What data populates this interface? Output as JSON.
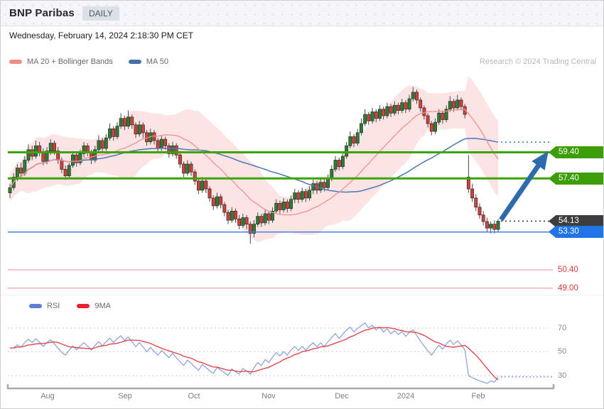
{
  "header": {
    "title": "BNP Paribas",
    "badge": "DAILY"
  },
  "date_line": "Wednesday, February 14, 2024 2:18:30 PM CET",
  "research_credit": "Research © 2024 Trading Central",
  "legend_main": [
    {
      "label": "MA 20 + Bollinger Bands",
      "color": "#f28b8b"
    },
    {
      "label": "MA 50",
      "color": "#4472a8"
    }
  ],
  "legend_rsi": [
    {
      "label": "RSI",
      "color": "#5b7fd6"
    },
    {
      "label": "9MA",
      "color": "#e8232e"
    }
  ],
  "price_tags": {
    "r1": {
      "label": "59.40",
      "bg": "#3c9e06"
    },
    "r2": {
      "label": "57.40",
      "bg": "#3c9e06"
    },
    "last": {
      "label": "54.13",
      "bg": "#3d3d3f"
    },
    "s1": {
      "label": "53.30",
      "bg": "#2173e8"
    },
    "s2": {
      "label": "50.40"
    },
    "s3": {
      "label": "49.00"
    }
  },
  "chart_data": {
    "type": "candlestick",
    "title": "BNP Paribas — daily candlesticks with MA20 Bollinger Bands, MA50, RSI(14) and 9MA of RSI",
    "x_axis": {
      "labels": [
        "Aug",
        "Sep",
        "Oct",
        "Nov",
        "Dec",
        "2024",
        "Feb"
      ]
    },
    "ylim_price_panel": [
      48.5,
      65.5
    ],
    "levels": {
      "resistance": [
        59.4,
        57.4
      ],
      "support_blue": 53.3,
      "last_price": 54.13,
      "support_red": [
        50.4,
        49.0
      ]
    },
    "annotation_arrow": {
      "direction": "up",
      "from_price": 54.13,
      "to_price": 59.4,
      "color": "#2e6bad"
    },
    "rsi_gridlines": [
      "70",
      "50",
      "30"
    ],
    "rsi_ylim": [
      15,
      85
    ],
    "indicators": [
      "MA 20 + Bollinger Bands",
      "MA 50",
      "RSI",
      "9MA"
    ],
    "candles_ohlc": [
      [
        56.3,
        57.0,
        55.9,
        56.7
      ],
      [
        56.7,
        57.8,
        56.5,
        57.5
      ],
      [
        57.5,
        58.5,
        57.2,
        58.2
      ],
      [
        58.2,
        58.6,
        57.5,
        57.8
      ],
      [
        57.8,
        59.1,
        57.6,
        58.8
      ],
      [
        58.8,
        60.0,
        58.6,
        59.6
      ],
      [
        59.6,
        59.9,
        58.8,
        59.1
      ],
      [
        59.1,
        60.3,
        58.9,
        59.9
      ],
      [
        59.9,
        60.2,
        59.1,
        59.4
      ],
      [
        59.4,
        59.7,
        58.4,
        58.7
      ],
      [
        58.7,
        59.8,
        58.5,
        59.5
      ],
      [
        59.5,
        60.4,
        59.2,
        60.1
      ],
      [
        60.1,
        60.3,
        59.2,
        59.5
      ],
      [
        59.5,
        59.8,
        58.5,
        58.8
      ],
      [
        58.8,
        59.0,
        57.8,
        58.1
      ],
      [
        58.1,
        58.4,
        57.3,
        57.6
      ],
      [
        57.6,
        58.6,
        57.4,
        58.4
      ],
      [
        58.4,
        59.5,
        58.2,
        59.2
      ],
      [
        59.2,
        59.4,
        58.3,
        58.6
      ],
      [
        58.6,
        59.6,
        58.4,
        59.3
      ],
      [
        59.3,
        60.2,
        59.0,
        59.9
      ],
      [
        59.9,
        60.1,
        59.1,
        59.4
      ],
      [
        59.4,
        59.6,
        58.5,
        58.8
      ],
      [
        58.8,
        59.9,
        58.6,
        59.6
      ],
      [
        59.6,
        60.7,
        59.4,
        60.3
      ],
      [
        60.3,
        60.5,
        59.4,
        59.7
      ],
      [
        59.7,
        60.8,
        59.5,
        60.5
      ],
      [
        60.5,
        61.6,
        60.3,
        61.2
      ],
      [
        61.2,
        61.4,
        60.3,
        60.6
      ],
      [
        60.6,
        61.7,
        60.4,
        61.4
      ],
      [
        61.4,
        62.4,
        61.2,
        62.0
      ],
      [
        62.0,
        62.2,
        61.1,
        61.4
      ],
      [
        61.4,
        62.6,
        61.2,
        62.1
      ],
      [
        62.1,
        62.3,
        61.2,
        61.5
      ],
      [
        61.5,
        61.7,
        60.5,
        60.8
      ],
      [
        60.8,
        61.8,
        60.6,
        61.5
      ],
      [
        61.5,
        61.7,
        60.5,
        60.9
      ],
      [
        60.9,
        61.1,
        59.9,
        60.2
      ],
      [
        60.2,
        61.2,
        60.0,
        60.9
      ],
      [
        60.9,
        61.1,
        60.0,
        60.3
      ],
      [
        60.3,
        60.5,
        59.4,
        59.7
      ],
      [
        59.7,
        60.7,
        59.5,
        60.4
      ],
      [
        60.4,
        60.6,
        59.6,
        59.9
      ],
      [
        59.9,
        60.1,
        59.0,
        59.3
      ],
      [
        59.3,
        60.2,
        59.1,
        59.9
      ],
      [
        59.9,
        60.1,
        58.9,
        59.2
      ],
      [
        59.2,
        59.4,
        58.2,
        58.5
      ],
      [
        58.5,
        58.7,
        57.5,
        57.8
      ],
      [
        57.8,
        58.8,
        57.6,
        58.5
      ],
      [
        58.5,
        58.7,
        57.6,
        57.9
      ],
      [
        57.9,
        58.1,
        56.9,
        57.2
      ],
      [
        57.2,
        57.4,
        56.2,
        56.5
      ],
      [
        56.5,
        57.5,
        56.3,
        57.2
      ],
      [
        57.2,
        57.4,
        56.3,
        56.6
      ],
      [
        56.6,
        56.8,
        55.6,
        55.9
      ],
      [
        55.9,
        56.1,
        55.0,
        55.3
      ],
      [
        55.3,
        56.3,
        55.1,
        56.0
      ],
      [
        56.0,
        56.2,
        55.1,
        55.4
      ],
      [
        55.4,
        55.6,
        54.5,
        54.8
      ],
      [
        54.8,
        55.0,
        53.9,
        54.2
      ],
      [
        54.2,
        55.2,
        54.0,
        54.9
      ],
      [
        54.9,
        55.1,
        54.0,
        54.3
      ],
      [
        54.3,
        54.6,
        53.5,
        53.8
      ],
      [
        53.8,
        54.7,
        53.6,
        54.4
      ],
      [
        54.4,
        54.6,
        53.5,
        53.9
      ],
      [
        53.9,
        54.1,
        52.4,
        53.2
      ],
      [
        53.2,
        54.2,
        52.9,
        53.9
      ],
      [
        53.9,
        54.8,
        53.7,
        54.5
      ],
      [
        54.5,
        54.7,
        53.7,
        54.0
      ],
      [
        54.0,
        55.0,
        53.8,
        54.7
      ],
      [
        54.7,
        54.9,
        53.9,
        54.2
      ],
      [
        54.2,
        55.2,
        54.0,
        54.9
      ],
      [
        54.9,
        55.8,
        54.7,
        55.5
      ],
      [
        55.5,
        55.7,
        54.7,
        55.0
      ],
      [
        55.0,
        55.9,
        54.8,
        55.6
      ],
      [
        55.6,
        55.8,
        54.8,
        55.1
      ],
      [
        55.1,
        56.1,
        54.9,
        55.8
      ],
      [
        55.8,
        56.6,
        55.5,
        56.3
      ],
      [
        56.3,
        56.5,
        55.5,
        55.8
      ],
      [
        55.8,
        56.7,
        55.6,
        56.4
      ],
      [
        56.4,
        56.6,
        55.6,
        55.9
      ],
      [
        55.9,
        56.8,
        55.7,
        56.5
      ],
      [
        56.5,
        57.3,
        56.2,
        57.0
      ],
      [
        57.0,
        57.2,
        56.2,
        56.5
      ],
      [
        56.5,
        57.4,
        56.3,
        57.1
      ],
      [
        57.1,
        57.3,
        56.4,
        56.7
      ],
      [
        56.7,
        57.7,
        56.5,
        57.4
      ],
      [
        57.4,
        58.4,
        57.2,
        58.1
      ],
      [
        58.1,
        59.1,
        57.9,
        58.8
      ],
      [
        58.8,
        59.0,
        58.0,
        58.3
      ],
      [
        58.3,
        59.4,
        58.1,
        59.1
      ],
      [
        59.1,
        60.2,
        58.9,
        59.9
      ],
      [
        59.9,
        61.0,
        59.7,
        60.6
      ],
      [
        60.6,
        60.8,
        59.8,
        60.1
      ],
      [
        60.1,
        61.2,
        59.9,
        60.9
      ],
      [
        60.9,
        62.0,
        60.7,
        61.6
      ],
      [
        61.6,
        62.7,
        61.4,
        62.3
      ],
      [
        62.3,
        62.5,
        61.5,
        61.8
      ],
      [
        61.8,
        62.8,
        61.6,
        62.5
      ],
      [
        62.5,
        62.7,
        61.7,
        62.0
      ],
      [
        62.0,
        63.0,
        61.8,
        62.7
      ],
      [
        62.7,
        62.9,
        61.9,
        62.2
      ],
      [
        62.2,
        63.2,
        62.0,
        62.9
      ],
      [
        62.9,
        63.1,
        62.1,
        62.4
      ],
      [
        62.4,
        63.3,
        62.2,
        63.0
      ],
      [
        63.0,
        63.2,
        62.3,
        62.6
      ],
      [
        62.6,
        63.5,
        62.4,
        63.2
      ],
      [
        63.2,
        63.4,
        62.4,
        62.7
      ],
      [
        62.7,
        63.8,
        62.5,
        63.5
      ],
      [
        63.5,
        64.4,
        63.3,
        64.0
      ],
      [
        64.0,
        64.2,
        63.1,
        63.4
      ],
      [
        63.4,
        63.6,
        62.5,
        62.8
      ],
      [
        62.8,
        63.0,
        61.9,
        62.2
      ],
      [
        62.2,
        62.4,
        61.3,
        61.6
      ],
      [
        61.6,
        61.8,
        60.7,
        61.0
      ],
      [
        61.0,
        62.0,
        60.8,
        61.7
      ],
      [
        61.7,
        62.7,
        61.5,
        62.4
      ],
      [
        62.4,
        62.6,
        61.6,
        61.9
      ],
      [
        61.9,
        63.0,
        61.7,
        62.7
      ],
      [
        62.7,
        63.7,
        62.5,
        63.3
      ],
      [
        63.3,
        63.5,
        62.5,
        62.8
      ],
      [
        62.8,
        63.8,
        62.6,
        63.4
      ],
      [
        63.4,
        63.6,
        62.6,
        62.9
      ],
      [
        62.9,
        63.1,
        62.0,
        62.3
      ],
      [
        57.5,
        59.2,
        56.3,
        56.6
      ],
      [
        56.6,
        57.0,
        55.6,
        55.9
      ],
      [
        55.9,
        56.2,
        54.9,
        55.2
      ],
      [
        55.2,
        55.5,
        54.3,
        54.6
      ],
      [
        54.6,
        54.9,
        53.8,
        54.1
      ],
      [
        54.1,
        54.4,
        53.3,
        53.6
      ],
      [
        53.6,
        54.1,
        53.2,
        53.9
      ],
      [
        53.9,
        54.2,
        53.2,
        53.5
      ],
      [
        53.5,
        54.3,
        53.3,
        54.13
      ]
    ]
  }
}
